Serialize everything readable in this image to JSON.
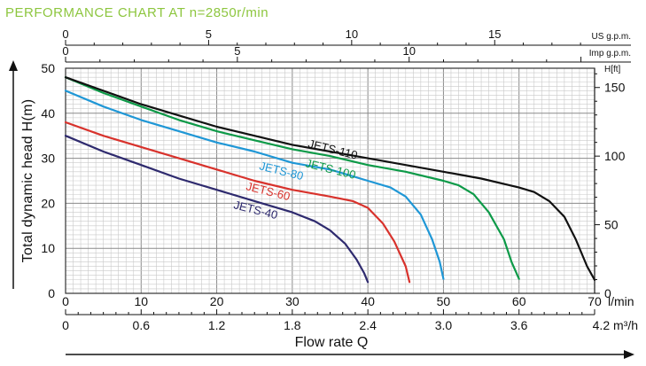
{
  "header": {
    "title": "PERFORMANCE CHART AT n=2850r/min"
  },
  "chart_data": {
    "type": "line",
    "title": "PERFORMANCE CHART AT n=2850r/min",
    "ylabel": "Total dynamic head H(m)",
    "xlabel": "Flow rate Q",
    "ylim": [
      0,
      50
    ],
    "xlim": [
      0,
      70
    ],
    "grid": true,
    "y_ticks": [
      "0",
      "10",
      "20",
      "30",
      "40",
      "50"
    ],
    "x_unit_lmin": "l/min",
    "x_ticks_lmin": [
      "0",
      "10",
      "20",
      "30",
      "40",
      "50",
      "60",
      "70"
    ],
    "x_unit_m3h": "4.2 m³/h",
    "x_ticks_m3h": [
      "0",
      "0.6",
      "1.2",
      "1.8",
      "2.4",
      "3.0",
      "3.6"
    ],
    "top_unit_usgpm": "US g.p.m.",
    "top_ticks_usgpm": [
      "0",
      "5",
      "10",
      "15"
    ],
    "top_unit_impgpm": "Imp g.p.m.",
    "top_ticks_impgpm": [
      "0",
      "5",
      "10"
    ],
    "right_unit": "H[ft]",
    "right_ticks_ft": [
      "0",
      "50",
      "100",
      "150"
    ],
    "series": [
      {
        "name": "JETS-40",
        "color": "#2e2a6e",
        "x": [
          0,
          5,
          10,
          15,
          20,
          25,
          30,
          33,
          35,
          37,
          38.5,
          39.5,
          40
        ],
        "y": [
          35,
          31.5,
          28.5,
          25.5,
          23,
          20.5,
          18,
          16,
          14,
          11,
          7.5,
          4.5,
          2.5
        ]
      },
      {
        "name": "JETS-60",
        "color": "#d8322c",
        "x": [
          0,
          5,
          10,
          15,
          20,
          25,
          30,
          35,
          38,
          40,
          42,
          43.5,
          45,
          45.5
        ],
        "y": [
          38,
          35,
          32.5,
          30,
          27.5,
          25,
          23,
          21.5,
          20.5,
          19,
          15.5,
          11.5,
          6,
          2.5
        ]
      },
      {
        "name": "JETS-80",
        "color": "#1f97d6",
        "x": [
          0,
          5,
          10,
          15,
          20,
          25,
          30,
          35,
          40,
          43,
          45,
          47,
          48.5,
          49.5,
          50
        ],
        "y": [
          45,
          41.5,
          38.5,
          36,
          33.5,
          31.5,
          29,
          27.5,
          25,
          23.5,
          21.5,
          17.5,
          12,
          7,
          3.2
        ]
      },
      {
        "name": "JETS-100",
        "color": "#0d9a48",
        "x": [
          0,
          5,
          10,
          15,
          20,
          25,
          30,
          35,
          40,
          45,
          50,
          52,
          54,
          56,
          58,
          59,
          60
        ],
        "y": [
          48,
          44.5,
          41.5,
          38.5,
          36,
          34,
          32,
          30.5,
          28.5,
          27,
          25,
          24,
          22,
          18,
          12,
          7,
          3.2
        ]
      },
      {
        "name": "JETS-110",
        "color": "#111111",
        "x": [
          0,
          5,
          10,
          15,
          20,
          25,
          30,
          35,
          40,
          45,
          50,
          55,
          60,
          62,
          64,
          66,
          67.5,
          69,
          70
        ],
        "y": [
          48,
          45,
          42,
          39.5,
          37,
          35,
          33,
          31.5,
          30,
          28.5,
          27,
          25.5,
          23.5,
          22.5,
          20.5,
          17,
          12,
          6,
          3
        ]
      }
    ]
  }
}
